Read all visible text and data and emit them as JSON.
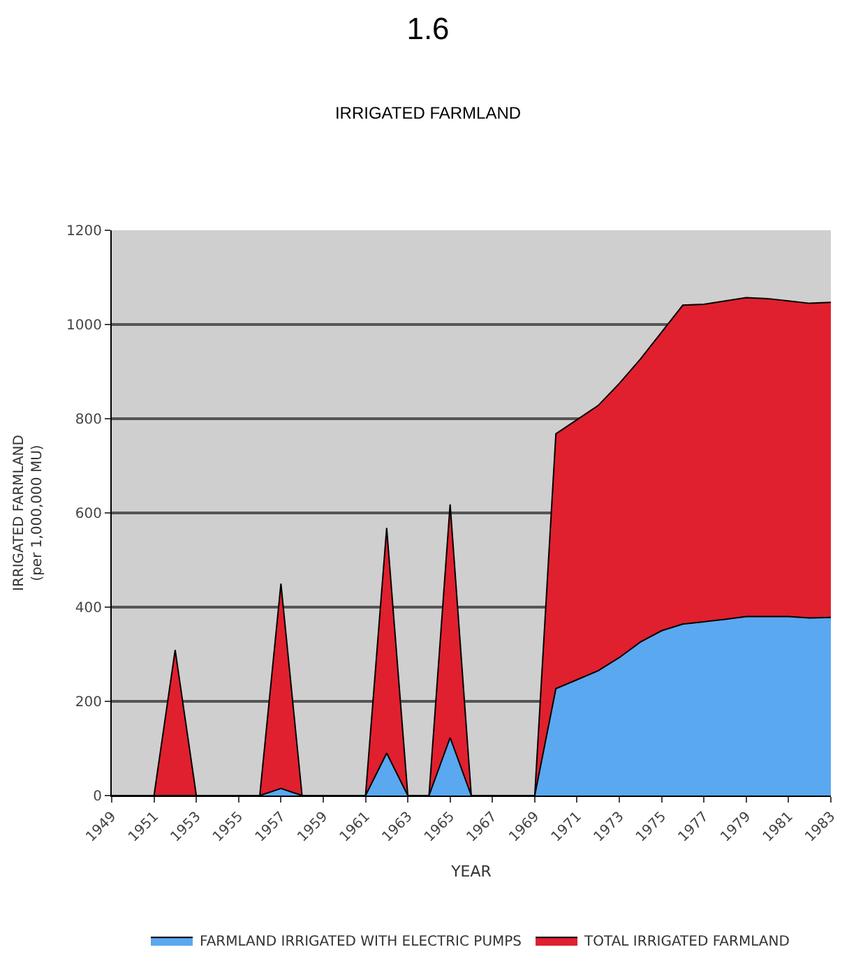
{
  "chart_data": {
    "type": "area",
    "title": "1.6",
    "subtitle": "IRRIGATED FARMLAND",
    "xlabel": "YEAR",
    "ylabel": "IRRIGATED FARMLAND\n(per 1,000,000 MU)",
    "x": [
      1949,
      1950,
      1951,
      1952,
      1953,
      1954,
      1955,
      1956,
      1957,
      1958,
      1959,
      1960,
      1961,
      1962,
      1963,
      1964,
      1965,
      1966,
      1967,
      1968,
      1969,
      1970,
      1971,
      1972,
      1973,
      1974,
      1975,
      1976,
      1977,
      1978,
      1979,
      1980,
      1981,
      1982,
      1983
    ],
    "series": [
      {
        "name": "FARMLAND IRRIGATED WITH ELECTRIC PUMPS",
        "color": "#5aa8f0",
        "values": [
          0,
          0,
          0,
          0,
          0,
          0,
          0,
          0,
          15,
          0,
          0,
          0,
          0,
          90,
          0,
          0,
          123,
          0,
          0,
          0,
          0,
          227,
          246,
          265,
          293,
          326,
          350,
          364,
          369,
          374,
          380,
          380,
          380,
          377,
          378
        ]
      },
      {
        "name": "TOTAL IRRIGATED FARMLAND",
        "color": "#e0202e",
        "values": [
          0,
          0,
          0,
          309,
          0,
          0,
          0,
          0,
          450,
          0,
          0,
          0,
          0,
          568,
          0,
          0,
          618,
          0,
          0,
          0,
          0,
          768,
          798,
          828,
          875,
          927,
          984,
          1041,
          1043,
          1050,
          1057,
          1055,
          1050,
          1045,
          1047
        ]
      }
    ],
    "xlim": [
      1949,
      1983
    ],
    "xticks": [
      1949,
      1951,
      1953,
      1955,
      1957,
      1959,
      1961,
      1963,
      1965,
      1967,
      1969,
      1971,
      1973,
      1975,
      1977,
      1979,
      1981,
      1983
    ],
    "ylim": [
      0,
      1200
    ],
    "yticks": [
      0,
      200,
      400,
      600,
      800,
      1000,
      1200
    ],
    "grid": "y",
    "legend": "bottom"
  }
}
